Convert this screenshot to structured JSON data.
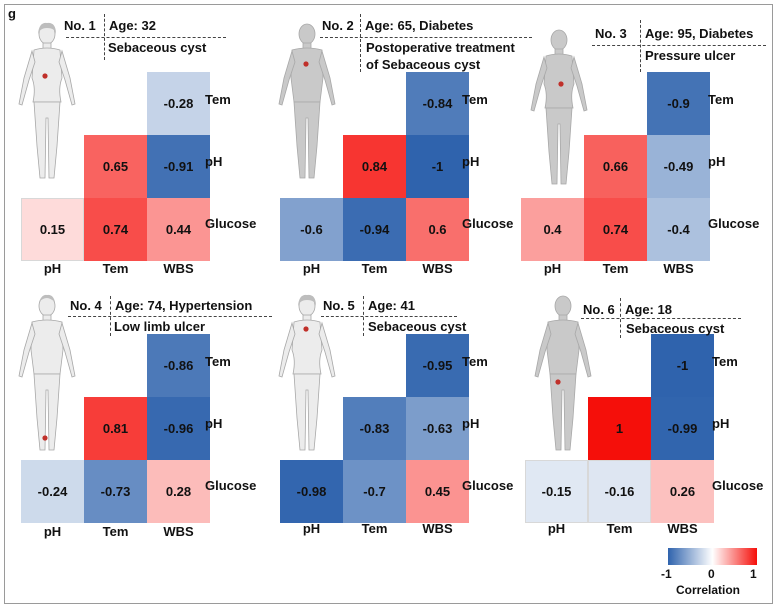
{
  "panel_letter": "g",
  "colors": {
    "neg": "#2f63ad",
    "mid": "#ffffff",
    "pos": "#f50f0a",
    "dot": "#c0302a"
  },
  "colorbar": {
    "ticks": [
      "-1",
      "0",
      "1"
    ],
    "label": "Correlation"
  },
  "chart_data": [
    {
      "type": "heatmap",
      "title": "No. 1",
      "subtitle": "Age: 32",
      "diagnosis": "Sebaceous cyst",
      "sex": "female",
      "view": "front",
      "body_icon": "female-front-silhouette-icon",
      "lesion": "abdomen-left",
      "row_labels": [
        "Tem",
        "pH",
        "Glucose"
      ],
      "col_labels": [
        "pH",
        "Tem",
        "WBS"
      ],
      "matrix": [
        [
          null,
          null,
          -0.28
        ],
        [
          null,
          0.65,
          -0.91
        ],
        [
          0.15,
          0.74,
          0.44
        ]
      ],
      "color_range": [
        -1,
        1
      ]
    },
    {
      "type": "heatmap",
      "title": "No. 2",
      "subtitle": "Age: 65,   Diabetes",
      "diagnosis_lines": [
        "Postoperative treatment",
        "of Sebaceous cyst"
      ],
      "sex": "male",
      "view": "back",
      "body_icon": "male-back-silhouette-icon",
      "lesion": "upper-back",
      "row_labels": [
        "Tem",
        "pH",
        "Glucose"
      ],
      "col_labels": [
        "pH",
        "Tem",
        "WBS"
      ],
      "matrix": [
        [
          null,
          null,
          -0.84
        ],
        [
          null,
          0.84,
          -1
        ],
        [
          -0.6,
          -0.94,
          0.6
        ]
      ],
      "color_range": [
        -1,
        1
      ]
    },
    {
      "type": "heatmap",
      "title": "No. 3",
      "subtitle": "Age: 95, Diabetes",
      "diagnosis": "Pressure ulcer",
      "sex": "female",
      "view": "back",
      "body_icon": "female-back-silhouette-icon",
      "lesion": "lower-back",
      "row_labels": [
        "Tem",
        "pH",
        "Glucose"
      ],
      "col_labels": [
        "pH",
        "Tem",
        "WBS"
      ],
      "matrix": [
        [
          null,
          null,
          -0.9
        ],
        [
          null,
          0.66,
          -0.49
        ],
        [
          0.4,
          0.74,
          -0.4
        ]
      ],
      "color_range": [
        -1,
        1
      ]
    },
    {
      "type": "heatmap",
      "title": "No. 4",
      "subtitle": "Age: 74,   Hypertension",
      "diagnosis": "Low limb ulcer",
      "sex": "male",
      "view": "front",
      "body_icon": "male-front-silhouette-icon",
      "lesion": "lower-leg",
      "row_labels": [
        "Tem",
        "pH",
        "Glucose"
      ],
      "col_labels": [
        "pH",
        "Tem",
        "WBS"
      ],
      "matrix": [
        [
          null,
          null,
          -0.86
        ],
        [
          null,
          0.81,
          -0.96
        ],
        [
          -0.24,
          -0.73,
          0.28
        ]
      ],
      "color_range": [
        -1,
        1
      ]
    },
    {
      "type": "heatmap",
      "title": "No. 5",
      "subtitle": "Age: 41",
      "diagnosis": "Sebaceous cyst",
      "sex": "female",
      "view": "front",
      "body_icon": "female-front-silhouette-icon",
      "lesion": "face",
      "row_labels": [
        "Tem",
        "pH",
        "Glucose"
      ],
      "col_labels": [
        "pH",
        "Tem",
        "WBS"
      ],
      "matrix": [
        [
          null,
          null,
          -0.95
        ],
        [
          null,
          -0.83,
          -0.63
        ],
        [
          -0.98,
          -0.7,
          0.45
        ]
      ],
      "color_range": [
        -1,
        1
      ]
    },
    {
      "type": "heatmap",
      "title": "No. 6",
      "subtitle": "Age: 18",
      "diagnosis": "Sebaceous cyst",
      "sex": "male",
      "view": "back",
      "body_icon": "male-back-silhouette-icon",
      "lesion": "buttock",
      "row_labels": [
        "Tem",
        "pH",
        "Glucose"
      ],
      "col_labels": [
        "pH",
        "Tem",
        "WBS"
      ],
      "matrix": [
        [
          null,
          null,
          -1
        ],
        [
          null,
          1,
          -0.99
        ],
        [
          -0.15,
          -0.16,
          0.26
        ]
      ],
      "color_range": [
        -1,
        1
      ]
    }
  ]
}
